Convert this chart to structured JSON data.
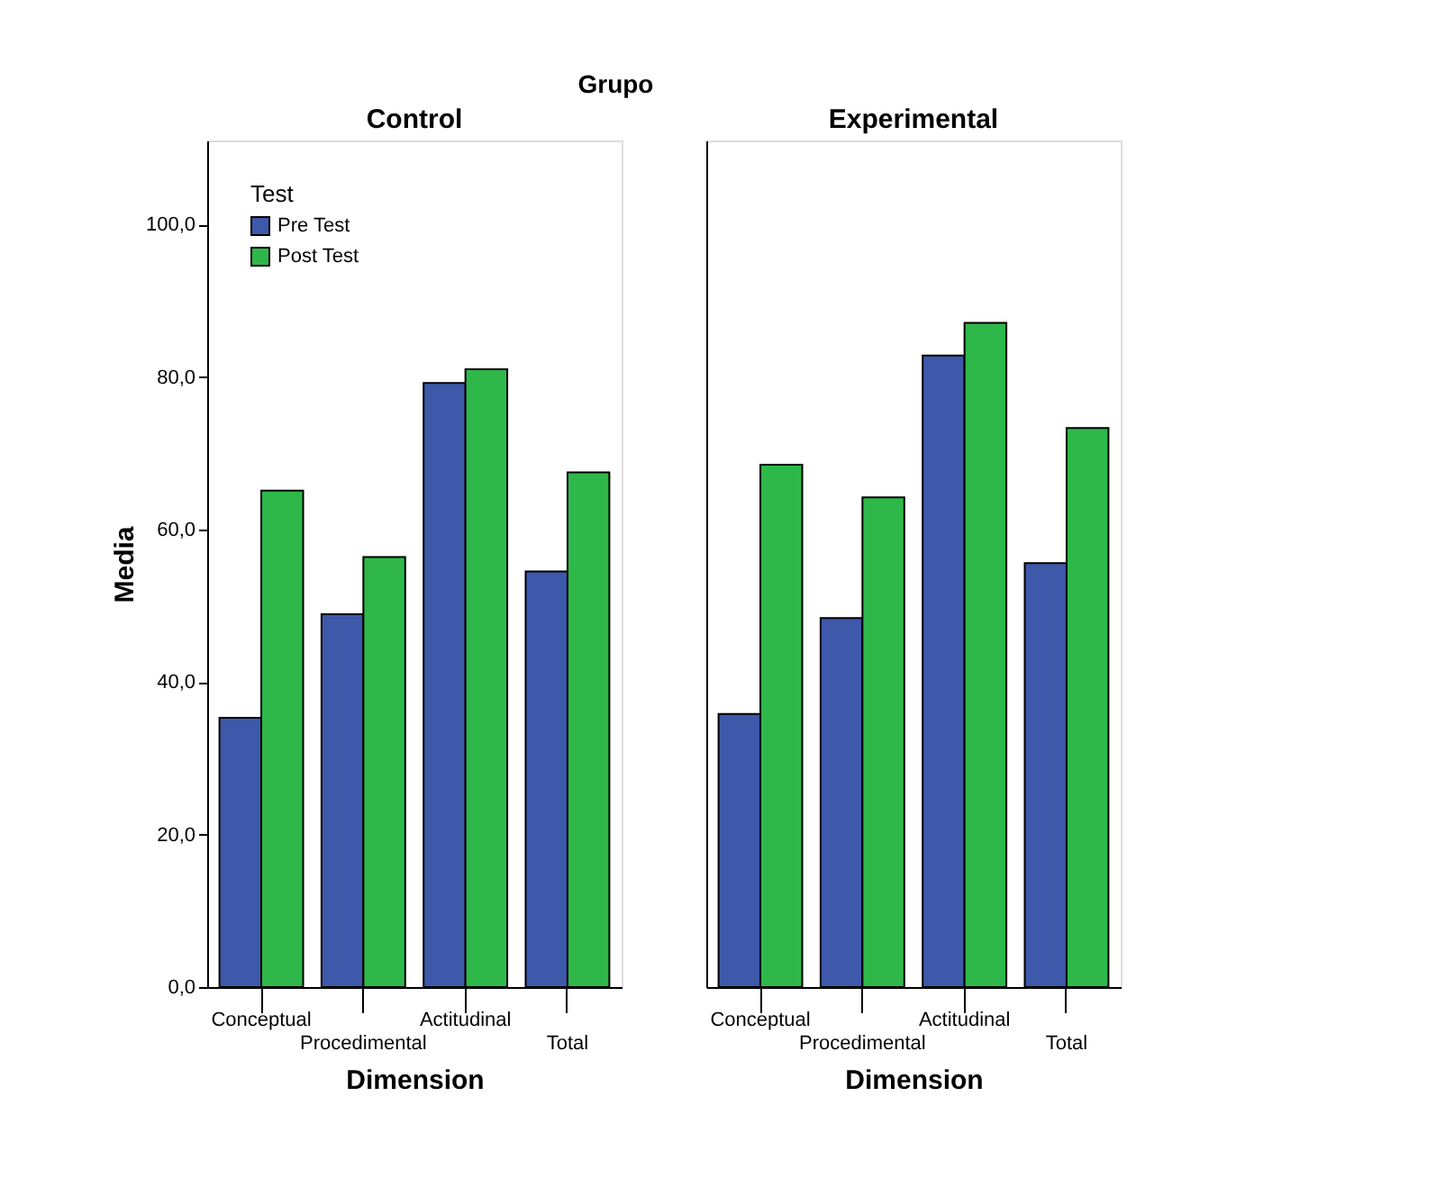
{
  "chart_data": [
    {
      "type": "bar",
      "title": "Control",
      "annotations": [
        "Grupo"
      ],
      "xlabel": "Dimension",
      "ylabel": "Media",
      "legend_title": "Test",
      "legend": "top left",
      "categories": [
        "Conceptual",
        "Procedimental",
        "Actitudinal",
        "Total"
      ],
      "series": [
        {
          "name": "Pre Test",
          "color": "#3e58aa",
          "values": [
            35.3,
            48.9,
            79.2,
            54.5
          ]
        },
        {
          "name": "Post Test",
          "color": "#2fb84a",
          "values": [
            65.1,
            56.4,
            81.0,
            67.5
          ]
        }
      ],
      "ylim": [
        0,
        111
      ],
      "yticks": [
        {
          "value": 0,
          "label": "0,0"
        },
        {
          "value": 20,
          "label": "20,0"
        },
        {
          "value": 40,
          "label": "40,0"
        },
        {
          "value": 60,
          "label": "60,0"
        },
        {
          "value": 80,
          "label": "80,0"
        },
        {
          "value": 100,
          "label": "100,0"
        }
      ]
    },
    {
      "type": "bar",
      "title": "Experimental",
      "xlabel": "Dimension",
      "legend": false,
      "tick_labels": "x",
      "categories": [
        "Conceptual",
        "Procedimental",
        "Actitudinal",
        "Total"
      ],
      "series": [
        {
          "color": "#3e58aa",
          "values": [
            35.8,
            48.4,
            82.8,
            55.6
          ]
        },
        {
          "color": "#2fb84a",
          "values": [
            68.5,
            64.2,
            87.1,
            73.3
          ]
        }
      ],
      "ylim": [
        0,
        111
      ]
    }
  ]
}
